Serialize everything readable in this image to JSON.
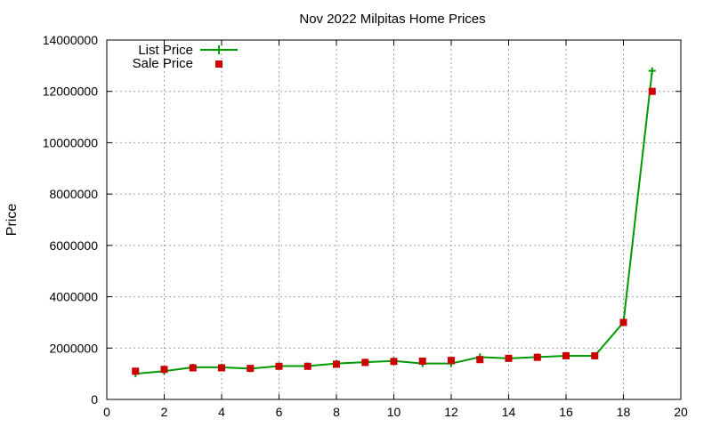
{
  "chart_data": {
    "type": "line",
    "title": "Nov 2022 Milpitas Home Prices",
    "xlabel": "",
    "ylabel": "Price",
    "xlim": [
      0,
      20
    ],
    "ylim": [
      0,
      14000000
    ],
    "xticks": [
      "0",
      "2",
      "4",
      "6",
      "8",
      "10",
      "12",
      "14",
      "16",
      "18",
      "20"
    ],
    "yticks": [
      "0",
      "2000000",
      "4000000",
      "6000000",
      "8000000",
      "10000000",
      "12000000",
      "14000000"
    ],
    "grid": true,
    "legend_position": "top-left",
    "series": [
      {
        "name": "List Price",
        "style": "line+cross",
        "color": "#009900",
        "x": [
          1,
          2,
          3,
          4,
          5,
          6,
          7,
          8,
          9,
          10,
          11,
          12,
          13,
          14,
          15,
          16,
          17,
          18,
          19
        ],
        "y": [
          1000000,
          1100000,
          1250000,
          1250000,
          1200000,
          1300000,
          1300000,
          1400000,
          1450000,
          1500000,
          1400000,
          1400000,
          1650000,
          1600000,
          1650000,
          1700000,
          1700000,
          3000000,
          12800000
        ]
      },
      {
        "name": "Sale Price",
        "style": "square",
        "color": "#cc0000",
        "x": [
          1,
          2,
          3,
          4,
          5,
          6,
          7,
          8,
          9,
          10,
          11,
          12,
          13,
          14,
          15,
          16,
          17,
          18,
          19
        ],
        "y": [
          1100000,
          1170000,
          1230000,
          1230000,
          1210000,
          1290000,
          1290000,
          1370000,
          1440000,
          1480000,
          1490000,
          1520000,
          1550000,
          1600000,
          1640000,
          1700000,
          1700000,
          3000000,
          12000000
        ]
      }
    ]
  }
}
